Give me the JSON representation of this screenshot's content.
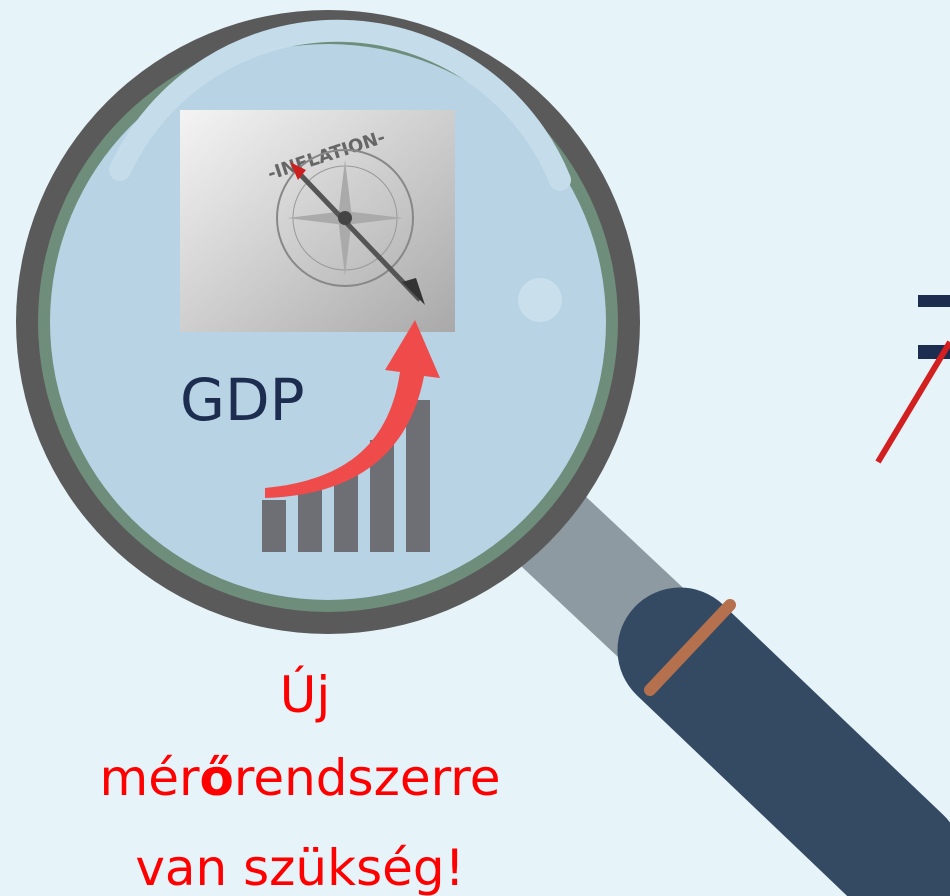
{
  "image": {
    "inflation_label": "-INFLATION-",
    "gdp_label": "GDP"
  },
  "caption": {
    "line1": "Új",
    "line2": {
      "before": "mér",
      "bold": "ő",
      "after": "rendszerre"
    },
    "line3": "van szükség!"
  }
}
